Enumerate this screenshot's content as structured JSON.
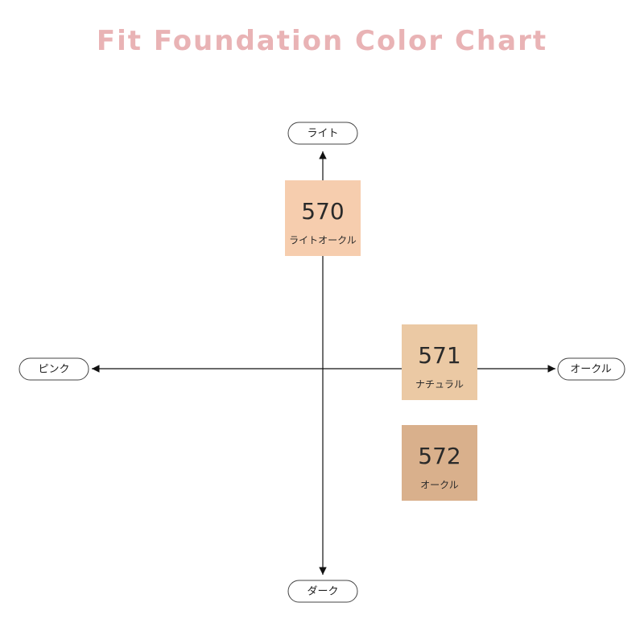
{
  "title": "Fit Foundation Color Chart",
  "axes": {
    "top": "ライト",
    "bottom": "ダーク",
    "left": "ピンク",
    "right": "オークル"
  },
  "swatches": [
    {
      "code": "570",
      "name": "ライトオークル",
      "color": "#f6cdae"
    },
    {
      "code": "571",
      "name": "ナチュラル",
      "color": "#ebc9a4"
    },
    {
      "code": "572",
      "name": "オークル",
      "color": "#d9b08c"
    }
  ]
}
